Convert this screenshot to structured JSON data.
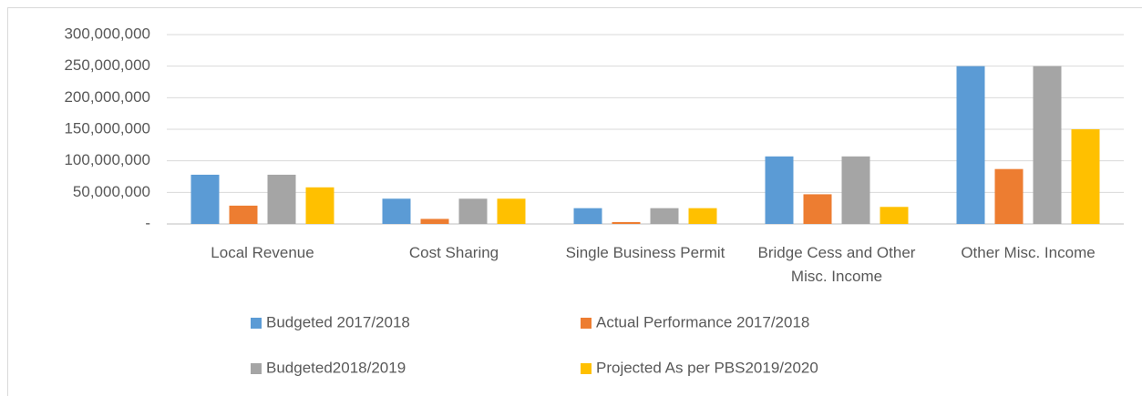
{
  "chart_data": {
    "type": "bar",
    "categories": [
      "Local Revenue",
      "Cost Sharing",
      "Single Business Permit",
      "Bridge Cess and Other Misc. Income",
      "Other Misc. Income"
    ],
    "series": [
      {
        "name": "Budgeted 2017/2018",
        "color": "#5b9bd5",
        "values": [
          78000000,
          40000000,
          25000000,
          107000000,
          250000000
        ]
      },
      {
        "name": "Actual Performance 2017/2018",
        "color": "#ed7d31",
        "values": [
          29000000,
          8000000,
          3000000,
          47000000,
          87000000
        ]
      },
      {
        "name": "Budgeted2018/2019",
        "color": "#a5a5a5",
        "values": [
          78000000,
          40000000,
          25000000,
          107000000,
          250000000
        ]
      },
      {
        "name": "Projected As per PBS2019/2020",
        "color": "#ffc000",
        "values": [
          58000000,
          40000000,
          25000000,
          27000000,
          150000000
        ]
      }
    ],
    "ylim": [
      0,
      300000000
    ],
    "yticks": [
      {
        "value": 0,
        "label": "-"
      },
      {
        "value": 50000000,
        "label": "50,000,000"
      },
      {
        "value": 100000000,
        "label": "100,000,000"
      },
      {
        "value": 150000000,
        "label": "150,000,000"
      },
      {
        "value": 200000000,
        "label": "200,000,000"
      },
      {
        "value": 250000000,
        "label": "250,000,000"
      },
      {
        "value": 300000000,
        "label": "300,000,000"
      }
    ],
    "grid": true,
    "legend": "bottom"
  }
}
